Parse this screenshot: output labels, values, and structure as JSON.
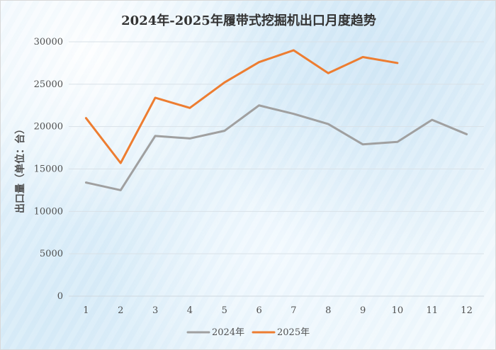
{
  "chart_data": {
    "type": "line",
    "title": "2024年-2025年履带式挖掘机出口月度趋势",
    "xlabel": "",
    "ylabel": "出口量（单位：台）",
    "categories": [
      "1",
      "2",
      "3",
      "4",
      "5",
      "6",
      "7",
      "8",
      "9",
      "10",
      "11",
      "12"
    ],
    "ylim": [
      0,
      30000
    ],
    "yticks": [
      0,
      5000,
      10000,
      15000,
      20000,
      25000,
      30000
    ],
    "grid": true,
    "legend_position": "bottom",
    "series": [
      {
        "name": "2024年",
        "color": "#a0a0a0",
        "values": [
          13400,
          12500,
          18900,
          18600,
          19500,
          22500,
          21500,
          20300,
          17900,
          18200,
          20800,
          19100
        ]
      },
      {
        "name": "2025年",
        "color": "#ed7d31",
        "values": [
          21000,
          15700,
          23400,
          22200,
          25200,
          27600,
          29000,
          26300,
          28200,
          27500,
          null,
          null
        ]
      }
    ]
  }
}
